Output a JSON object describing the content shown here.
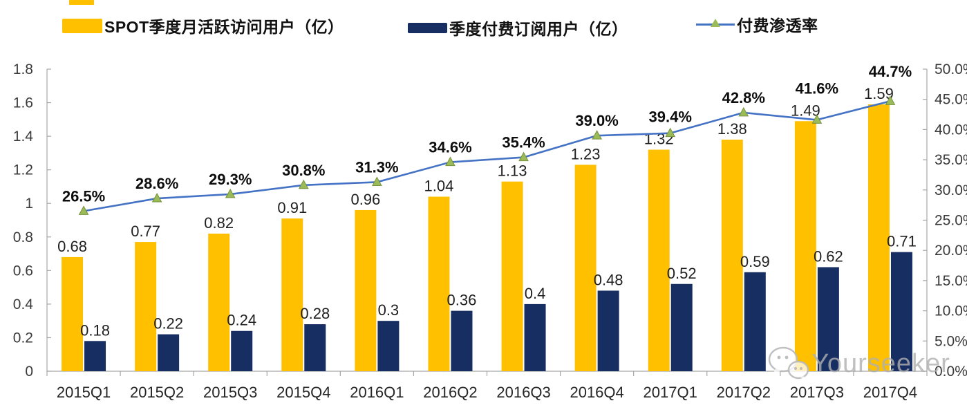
{
  "legend": {
    "items": [
      {
        "label": "SPOT季度月活跃访问用户（亿）",
        "swatch": "bar",
        "color": "#FFC000"
      },
      {
        "label": "季度付费订阅用户（亿）",
        "swatch": "bar",
        "color": "#172E63"
      },
      {
        "label": "付费渗透率",
        "swatch": "line-marker",
        "line_color": "#4472C4",
        "marker_color": "#9BBB59"
      }
    ]
  },
  "watermark": {
    "text": "Yourseeker",
    "icon": "wechat-icon"
  },
  "colors": {
    "axis": "#A6A6A6",
    "bar_mau": "#FFC000",
    "bar_subs": "#172E63",
    "line": "#4472C4",
    "marker_fill": "#9BBB59",
    "marker_edge": "#76923C",
    "watermark": "#BDBDBD"
  },
  "chart_data": {
    "type": "combo-bar-line",
    "title": "",
    "categories": [
      "2015Q1",
      "2015Q2",
      "2015Q3",
      "2015Q4",
      "2016Q1",
      "2016Q2",
      "2016Q3",
      "2016Q4",
      "2017Q1",
      "2017Q2",
      "2017Q3",
      "2017Q4"
    ],
    "series": [
      {
        "name": "SPOT季度月活跃访问用户（亿）",
        "type": "bar",
        "axis": "left",
        "color": "#FFC000",
        "values": [
          0.68,
          0.77,
          0.82,
          0.91,
          0.96,
          1.04,
          1.13,
          1.23,
          1.32,
          1.38,
          1.49,
          1.59
        ],
        "labels": [
          "0.68",
          "0.77",
          "0.82",
          "0.91",
          "0.96",
          "1.04",
          "1.13",
          "1.23",
          "1.32",
          "1.38",
          "1.49",
          "1.59"
        ]
      },
      {
        "name": "季度付费订阅用户（亿）",
        "type": "bar",
        "axis": "left",
        "color": "#172E63",
        "values": [
          0.18,
          0.22,
          0.24,
          0.28,
          0.3,
          0.36,
          0.4,
          0.48,
          0.52,
          0.59,
          0.62,
          0.71
        ],
        "labels": [
          "0.18",
          "0.22",
          "0.24",
          "0.28",
          "0.3",
          "0.36",
          "0.4",
          "0.48",
          "0.52",
          "0.59",
          "0.62",
          "0.71"
        ]
      },
      {
        "name": "付费渗透率",
        "type": "line",
        "axis": "right",
        "color": "#4472C4",
        "marker": "triangle",
        "marker_color": "#9BBB59",
        "values": [
          26.5,
          28.6,
          29.3,
          30.8,
          31.3,
          34.6,
          35.4,
          39.0,
          39.4,
          42.8,
          41.6,
          44.7
        ],
        "labels": [
          "26.5%",
          "28.6%",
          "29.3%",
          "30.8%",
          "31.3%",
          "34.6%",
          "35.4%",
          "39.0%",
          "39.4%",
          "42.8%",
          "41.6%",
          "44.7%"
        ]
      }
    ],
    "left_axis": {
      "min": 0,
      "max": 1.8,
      "tick_labels": [
        "0",
        "0.2",
        "0.4",
        "0.6",
        "0.8",
        "1",
        "1.2",
        "1.4",
        "1.6",
        "1.8"
      ]
    },
    "right_axis": {
      "min": 0,
      "max": 50,
      "tick_labels": [
        "0.0%",
        "5.0%",
        "10.0%",
        "15.0%",
        "20.0%",
        "25.0%",
        "30.0%",
        "35.0%",
        "40.0%",
        "45.0%",
        "50.0%"
      ]
    },
    "grid": false,
    "legend_position": "top"
  }
}
